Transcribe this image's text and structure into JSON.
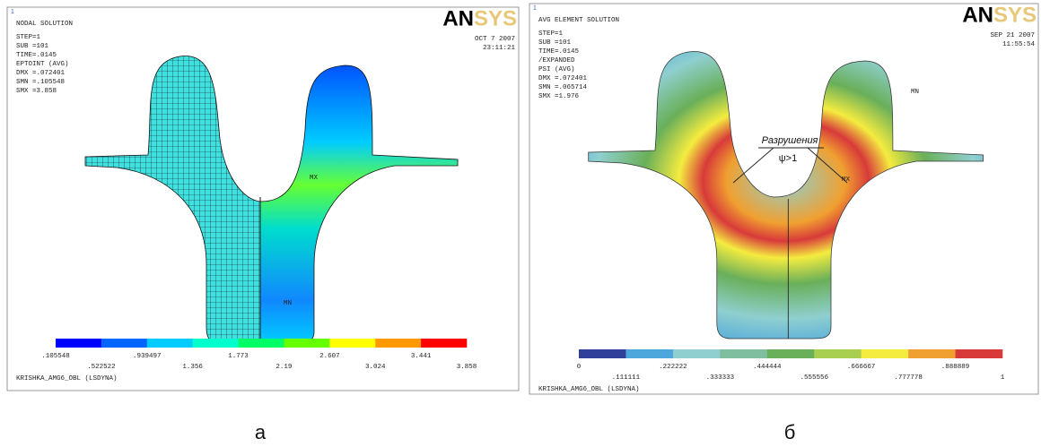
{
  "panels": [
    {
      "label": "а",
      "index": "1",
      "logo": "ANSYS",
      "title": "NODAL SOLUTION",
      "info": [
        "STEP=1",
        "SUB =101",
        "TIME=.0145",
        "EPTOINT  (AVG)",
        "DMX =.072401",
        "SMN =.105548",
        "SMX =3.858"
      ],
      "date": "OCT  7 2007",
      "time": "23:11:21",
      "markers": [
        "MX",
        "MN"
      ],
      "legend_labels": [
        ".105548",
        ".522522",
        ".939497",
        "1.356",
        "1.773",
        "2.19",
        "2.607",
        "3.024",
        "3.441",
        "3.858"
      ],
      "legend_colors": [
        "#0000ff",
        "#0066ff",
        "#00ccff",
        "#00ffcc",
        "#00ff66",
        "#66ff00",
        "#ffff00",
        "#ff9900",
        "#ff0000"
      ],
      "footer": "KRISHKA_AMG6_OBL (LSDYNA)"
    },
    {
      "label": "б",
      "index": "1",
      "logo": "ANSYS",
      "title": "AVG ELEMENT SOLUTION",
      "info": [
        "STEP=1",
        "SUB =101",
        "TIME=.0145",
        "/EXPANDED",
        "PSI      (AVG)",
        "DMX =.072401",
        "SMN =.065714",
        "SMX =1.976"
      ],
      "date": "SEP 21 2007",
      "time": "11:55:54",
      "markers": [
        "MN",
        "MX"
      ],
      "annotation": "Разрушения",
      "annotation_sub": "ψ>1",
      "legend_labels": [
        "0",
        ".111111",
        ".222222",
        ".333333",
        ".444444",
        ".555556",
        ".666667",
        ".777778",
        ".888889",
        "1"
      ],
      "legend_colors": [
        "#2f3f9a",
        "#4da6dc",
        "#8fcfcf",
        "#7fbf9f",
        "#6aaf5a",
        "#a8cf50",
        "#f4ec3f",
        "#f0a030",
        "#d83a3a"
      ],
      "footer": "KRISHKA_AMG6_OBL (LSDYNA)"
    }
  ]
}
